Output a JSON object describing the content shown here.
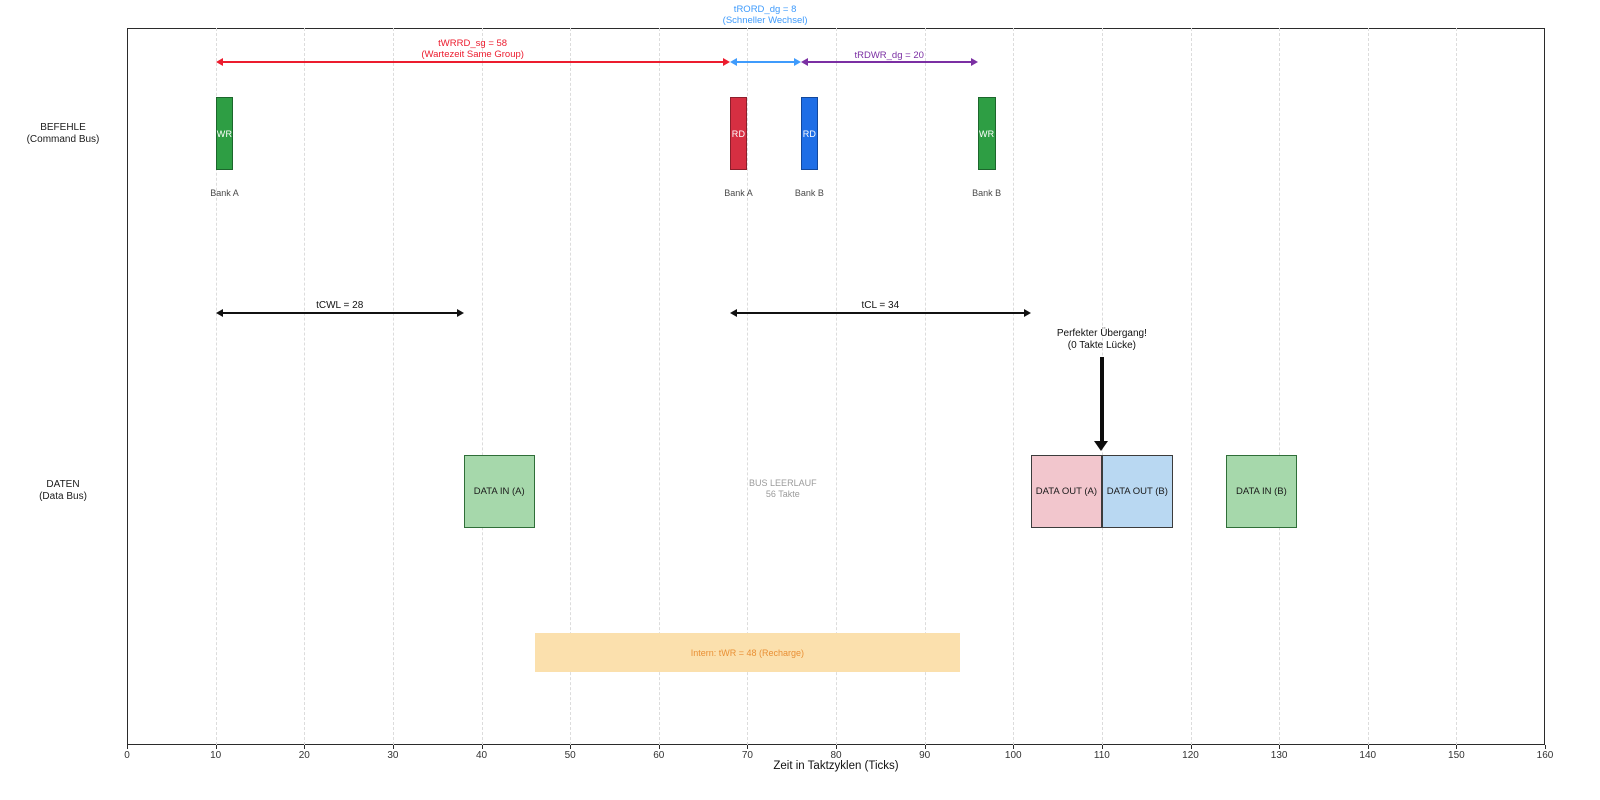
{
  "chart_data": {
    "type": "timing-diagram",
    "xlabel": "Zeit in Taktzyklen (Ticks)",
    "xlim": [
      0,
      160
    ],
    "x_tick_step": 10,
    "grid": true,
    "rows": [
      {
        "id": "befehle",
        "label_line1": "BEFEHLE",
        "label_line2": "(Command Bus)"
      },
      {
        "id": "daten",
        "label_line1": "DATEN",
        "label_line2": "(Data Bus)"
      }
    ],
    "commands": [
      {
        "label": "WR",
        "bank": "Bank A",
        "start": 10,
        "duration": 2,
        "fill": "#2e9e44",
        "border": "#1c662c"
      },
      {
        "label": "RD",
        "bank": "Bank A",
        "start": 68,
        "duration": 2,
        "fill": "#d62f42",
        "border": "#8d1f2c"
      },
      {
        "label": "RD",
        "bank": "Bank B",
        "start": 76,
        "duration": 2,
        "fill": "#1e6ee6",
        "border": "#12489c"
      },
      {
        "label": "WR",
        "bank": "Bank B",
        "start": 96,
        "duration": 2,
        "fill": "#2e9e44",
        "border": "#1c662c"
      }
    ],
    "data_blocks": [
      {
        "label": "DATA IN (A)",
        "start": 38,
        "duration": 8,
        "fill": "#a6d8ab",
        "border": "#2f6e38"
      },
      {
        "label": "DATA OUT (A)",
        "start": 102,
        "duration": 8,
        "fill": "#f2c6cd",
        "border": "#3c3c3c"
      },
      {
        "label": "DATA OUT (B)",
        "start": 110,
        "duration": 8,
        "fill": "#b9d8f2",
        "border": "#3c3c3c"
      },
      {
        "label": "DATA IN (B)",
        "start": 124,
        "duration": 8,
        "fill": "#a6d8ab",
        "border": "#2f6e38"
      }
    ],
    "timing_arrows_top": [
      {
        "name": "tWRRD_sg",
        "from": 10,
        "to": 68,
        "value": 58,
        "color": "#ec1c2e",
        "label_line1": "tWRRD_sg = 58",
        "label_line2": "(Wartezeit Same Group)",
        "label_pos": "above"
      },
      {
        "name": "tRORD_dg",
        "from": 68,
        "to": 76,
        "value": 8,
        "color": "#3f9bfc",
        "label_line1": "tRORD_dg = 8",
        "label_line2": "(Schneller Wechsel)",
        "label_pos": "title"
      },
      {
        "name": "tRDWR_dg",
        "from": 76,
        "to": 96,
        "value": 20,
        "color": "#7b2fa3",
        "label_line1": "tRDWR_dg = 20",
        "label_line2": "",
        "label_pos": "above"
      }
    ],
    "timing_arrows_mid": [
      {
        "name": "tCWL",
        "from": 10,
        "to": 38,
        "value": 28,
        "color": "#111111",
        "label": "tCWL = 28"
      },
      {
        "name": "tCL",
        "from": 68,
        "to": 102,
        "value": 34,
        "color": "#111111",
        "label": "tCL = 34"
      }
    ],
    "idle_note": {
      "line1": "BUS LEERLAUF",
      "line2": "56 Takte",
      "center": 74,
      "color": "#9b9b9b"
    },
    "recharge_band": {
      "label": "Intern: tWR = 48 (Recharge)",
      "start": 46,
      "duration": 48,
      "fill": "#fbe0ad",
      "text": "#e99035"
    },
    "transition_note": {
      "line1": "Perfekter Übergang!",
      "line2": "(0 Takte Lücke)",
      "x": 110,
      "color": "#111111"
    }
  }
}
